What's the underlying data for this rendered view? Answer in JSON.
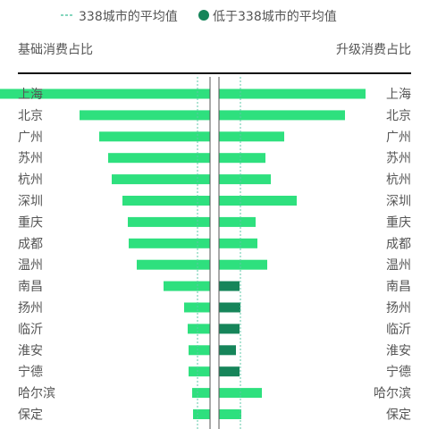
{
  "chart_data": {
    "type": "bar",
    "legend": [
      {
        "label": "338城市的平均值",
        "marker": "dashed-line",
        "color": "#5cc9a7"
      },
      {
        "label": "低于338城市的平均值",
        "marker": "dot",
        "color": "#16855a"
      }
    ],
    "left_axis_title": "基础消费占比",
    "right_axis_title": "升级消费占比",
    "categories": [
      "上海",
      "北京",
      "广州",
      "苏州",
      "杭州",
      "深圳",
      "重庆",
      "成都",
      "温州",
      "南昌",
      "扬州",
      "临沂",
      "淮安",
      "宁德",
      "哈尔滨",
      "保定"
    ],
    "series": [
      {
        "name": "基础消费占比",
        "side": "left",
        "values": [
          240,
          146,
          124,
          114,
          110,
          98,
          92,
          91,
          82,
          52,
          29,
          25,
          24,
          24,
          20,
          19
        ]
      },
      {
        "name": "升级消费占比",
        "side": "right",
        "values": [
          164,
          141,
          73,
          52,
          58,
          87,
          41,
          43,
          54,
          23,
          24,
          23,
          19,
          23,
          48,
          25
        ]
      }
    ],
    "below_average": [
      false,
      false,
      false,
      false,
      false,
      false,
      false,
      false,
      false,
      true,
      true,
      true,
      true,
      true,
      false,
      false
    ],
    "average": {
      "left": 14,
      "right": 24
    },
    "colors": {
      "bar": "#2ee07e",
      "below_average_bar": "#16855a",
      "average_line": "#5cc9a7",
      "center_line": "#555555",
      "axis": "#111111",
      "label": "#555555"
    }
  }
}
